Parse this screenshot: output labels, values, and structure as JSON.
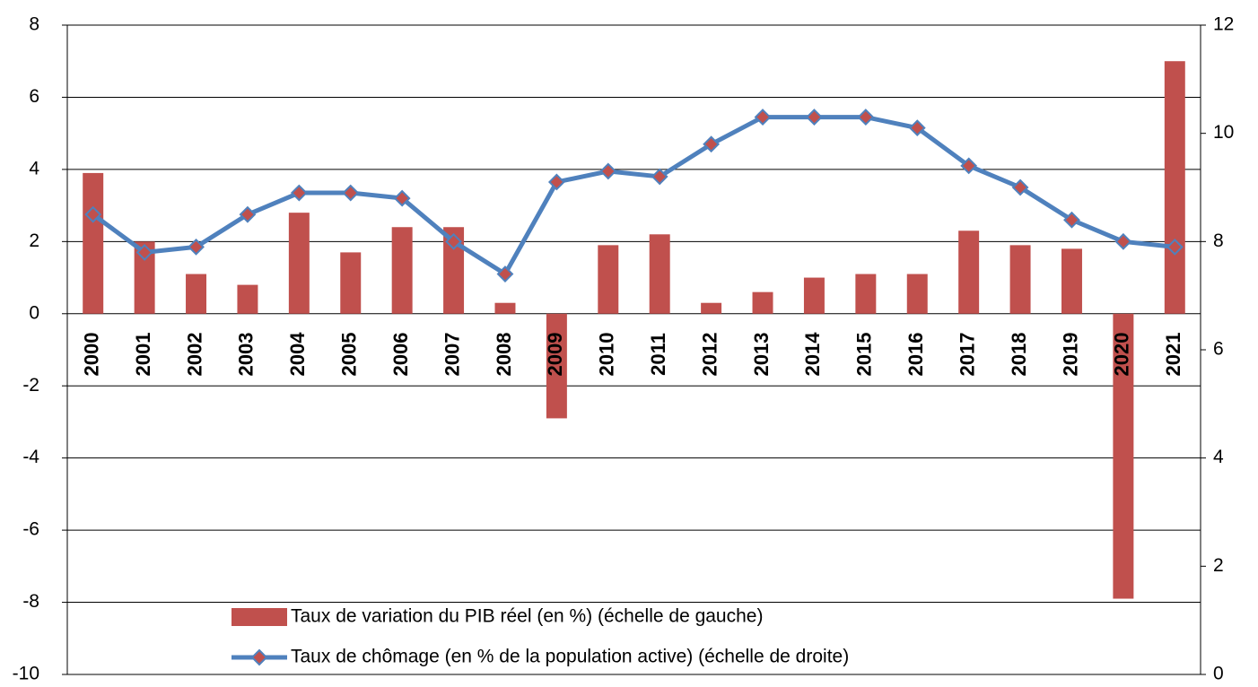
{
  "chart_data": {
    "type": "bar-line",
    "categories": [
      "2000",
      "2001",
      "2002",
      "2003",
      "2004",
      "2005",
      "2006",
      "2007",
      "2008",
      "2009",
      "2010",
      "2011",
      "2012",
      "2013",
      "2014",
      "2015",
      "2016",
      "2017",
      "2018",
      "2019",
      "2020",
      "2021"
    ],
    "series": [
      {
        "name": "Taux de variation du PIB réel (en %) (échelle de gauche)",
        "type": "bar",
        "color": "#c0504d",
        "values": [
          3.9,
          2.0,
          1.1,
          0.8,
          2.8,
          1.7,
          2.4,
          2.4,
          0.3,
          -2.9,
          1.9,
          2.2,
          0.3,
          0.6,
          1.0,
          1.1,
          1.1,
          2.3,
          1.9,
          1.8,
          -7.9,
          7.0
        ]
      },
      {
        "name": "Taux de chômage (en % de la population active) (échelle de droite)",
        "type": "line",
        "axis": "y2",
        "color": "#4f81bd",
        "marker_color": "#c0504d",
        "values": [
          8.5,
          7.8,
          7.9,
          8.5,
          8.9,
          8.9,
          8.8,
          8.0,
          7.4,
          9.1,
          9.3,
          9.2,
          9.8,
          10.3,
          10.3,
          10.3,
          10.1,
          9.4,
          9.0,
          8.4,
          8.0,
          7.9
        ]
      }
    ],
    "ylim": [
      -10,
      8
    ],
    "yticks": [
      -10,
      -8,
      -6,
      -4,
      -2,
      0,
      2,
      4,
      6,
      8
    ],
    "y2lim": [
      0,
      12
    ],
    "y2ticks": [
      0,
      2,
      4,
      6,
      8,
      10,
      12
    ],
    "grid": true
  }
}
